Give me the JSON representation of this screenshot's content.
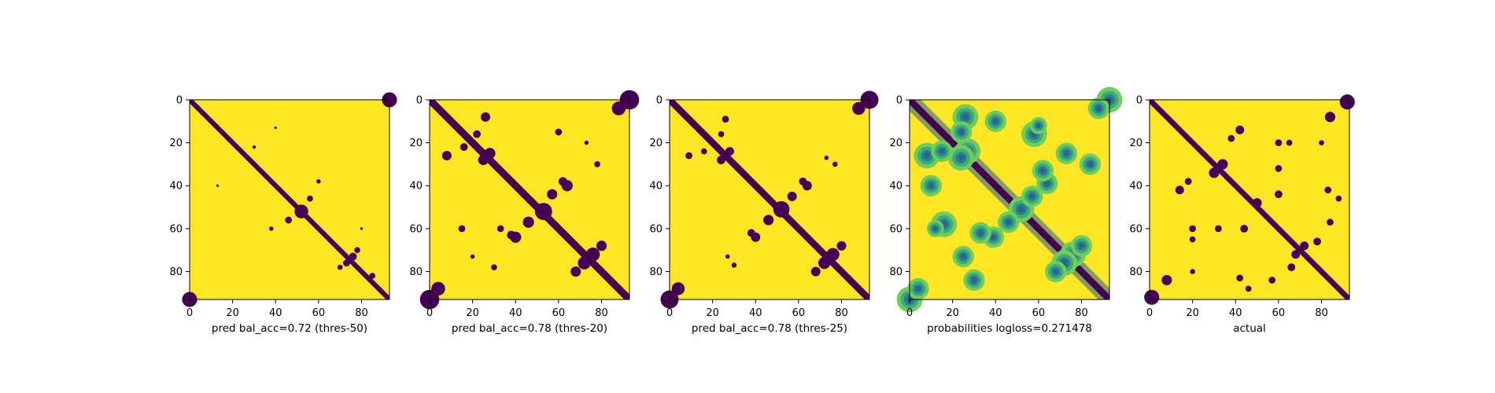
{
  "chart_data": [
    {
      "type": "heatmap",
      "title": "",
      "xlabel": "pred bal_acc=0.72 (thres-50)",
      "ylabel": "",
      "size": 93,
      "x_ticks": [
        0,
        20,
        40,
        60,
        80
      ],
      "y_ticks": [
        0,
        20,
        40,
        60,
        80
      ],
      "xlim": [
        0,
        93
      ],
      "ylim": [
        0,
        93
      ],
      "grid": false,
      "colors": [
        "#440154",
        "#fde725"
      ],
      "diagonal_band_halfwidth": 1.6,
      "spots": [
        {
          "x": 93,
          "y": 0,
          "r": 3.5
        },
        {
          "x": 0,
          "y": 93,
          "r": 3.5
        },
        {
          "x": 52,
          "y": 52,
          "r": 3.2
        },
        {
          "x": 46,
          "y": 56,
          "r": 1.6
        },
        {
          "x": 56,
          "y": 46,
          "r": 1.4
        },
        {
          "x": 60,
          "y": 38,
          "r": 1.0
        },
        {
          "x": 38,
          "y": 60,
          "r": 1.0
        },
        {
          "x": 76,
          "y": 73,
          "r": 1.8
        },
        {
          "x": 73,
          "y": 76,
          "r": 1.6
        },
        {
          "x": 78,
          "y": 70,
          "r": 1.4
        },
        {
          "x": 70,
          "y": 78,
          "r": 1.2
        },
        {
          "x": 85,
          "y": 82,
          "r": 1.4
        },
        {
          "x": 30,
          "y": 22,
          "r": 0.8
        },
        {
          "x": 80,
          "y": 60,
          "r": 0.6
        },
        {
          "x": 40,
          "y": 13,
          "r": 0.6
        },
        {
          "x": 13,
          "y": 40,
          "r": 0.6
        }
      ]
    },
    {
      "type": "heatmap",
      "title": "",
      "xlabel": "pred bal_acc=0.78 (thres-20)",
      "ylabel": "",
      "size": 93,
      "x_ticks": [
        0,
        20,
        40,
        60,
        80
      ],
      "y_ticks": [
        0,
        20,
        40,
        60,
        80
      ],
      "xlim": [
        0,
        93
      ],
      "ylim": [
        0,
        93
      ],
      "grid": false,
      "colors": [
        "#440154",
        "#fde725"
      ],
      "diagonal_band_halfwidth": 2.4,
      "spots": [
        {
          "x": 93,
          "y": 0,
          "r": 4.5
        },
        {
          "x": 0,
          "y": 93,
          "r": 4.5
        },
        {
          "x": 53,
          "y": 52,
          "r": 4.0
        },
        {
          "x": 46,
          "y": 57,
          "r": 2.6
        },
        {
          "x": 57,
          "y": 44,
          "r": 2.4
        },
        {
          "x": 62,
          "y": 38,
          "r": 2.0
        },
        {
          "x": 38,
          "y": 63,
          "r": 2.0
        },
        {
          "x": 28,
          "y": 25,
          "r": 2.6
        },
        {
          "x": 25,
          "y": 28,
          "r": 2.4
        },
        {
          "x": 26,
          "y": 8,
          "r": 2.2
        },
        {
          "x": 8,
          "y": 26,
          "r": 2.2
        },
        {
          "x": 16,
          "y": 22,
          "r": 1.8
        },
        {
          "x": 22,
          "y": 16,
          "r": 1.8
        },
        {
          "x": 64,
          "y": 40,
          "r": 2.6
        },
        {
          "x": 40,
          "y": 64,
          "r": 2.6
        },
        {
          "x": 76,
          "y": 72,
          "r": 3.2
        },
        {
          "x": 72,
          "y": 76,
          "r": 3.0
        },
        {
          "x": 80,
          "y": 68,
          "r": 2.4
        },
        {
          "x": 68,
          "y": 80,
          "r": 2.4
        },
        {
          "x": 60,
          "y": 15,
          "r": 1.6
        },
        {
          "x": 15,
          "y": 60,
          "r": 1.6
        },
        {
          "x": 73,
          "y": 20,
          "r": 1.0
        },
        {
          "x": 20,
          "y": 73,
          "r": 1.0
        },
        {
          "x": 4,
          "y": 88,
          "r": 3.2
        },
        {
          "x": 88,
          "y": 4,
          "r": 3.2
        },
        {
          "x": 30,
          "y": 78,
          "r": 1.4
        },
        {
          "x": 78,
          "y": 30,
          "r": 1.4
        },
        {
          "x": 33,
          "y": 60,
          "r": 1.6
        }
      ]
    },
    {
      "type": "heatmap",
      "title": "",
      "xlabel": "pred bal_acc=0.78 (thres-25)",
      "ylabel": "",
      "size": 93,
      "x_ticks": [
        0,
        20,
        40,
        60,
        80
      ],
      "y_ticks": [
        0,
        20,
        40,
        60,
        80
      ],
      "xlim": [
        0,
        93
      ],
      "ylim": [
        0,
        93
      ],
      "grid": false,
      "colors": [
        "#440154",
        "#fde725"
      ],
      "diagonal_band_halfwidth": 2.2,
      "spots": [
        {
          "x": 93,
          "y": 0,
          "r": 4.2
        },
        {
          "x": 0,
          "y": 93,
          "r": 4.2
        },
        {
          "x": 52,
          "y": 51,
          "r": 3.8
        },
        {
          "x": 46,
          "y": 56,
          "r": 2.4
        },
        {
          "x": 57,
          "y": 45,
          "r": 2.2
        },
        {
          "x": 62,
          "y": 38,
          "r": 1.8
        },
        {
          "x": 38,
          "y": 62,
          "r": 1.8
        },
        {
          "x": 28,
          "y": 24,
          "r": 2.0
        },
        {
          "x": 24,
          "y": 28,
          "r": 2.0
        },
        {
          "x": 26,
          "y": 9,
          "r": 1.6
        },
        {
          "x": 9,
          "y": 26,
          "r": 1.6
        },
        {
          "x": 16,
          "y": 24,
          "r": 1.4
        },
        {
          "x": 24,
          "y": 16,
          "r": 1.4
        },
        {
          "x": 64,
          "y": 40,
          "r": 2.2
        },
        {
          "x": 40,
          "y": 64,
          "r": 2.2
        },
        {
          "x": 76,
          "y": 72,
          "r": 3.0
        },
        {
          "x": 72,
          "y": 76,
          "r": 2.8
        },
        {
          "x": 80,
          "y": 68,
          "r": 2.2
        },
        {
          "x": 68,
          "y": 80,
          "r": 2.2
        },
        {
          "x": 73,
          "y": 27,
          "r": 1.0
        },
        {
          "x": 27,
          "y": 73,
          "r": 1.0
        },
        {
          "x": 4,
          "y": 88,
          "r": 3.0
        },
        {
          "x": 88,
          "y": 4,
          "r": 3.0
        },
        {
          "x": 30,
          "y": 77,
          "r": 1.2
        },
        {
          "x": 77,
          "y": 30,
          "r": 1.2
        }
      ]
    },
    {
      "type": "heatmap",
      "title": "",
      "xlabel": "probabilities logloss=0.271478",
      "ylabel": "",
      "size": 93,
      "x_ticks": [
        0,
        20,
        40,
        60,
        80
      ],
      "y_ticks": [
        0,
        20,
        40,
        60,
        80
      ],
      "xlim": [
        0,
        93
      ],
      "ylim": [
        0,
        93
      ],
      "grid": false,
      "colors": [
        "#440154",
        "#3b528b",
        "#21918c",
        "#5ec962",
        "#fde725"
      ],
      "continuous": true,
      "diagonal_band_halfwidth": 2.2,
      "spots": [
        {
          "x": 93,
          "y": 0,
          "r": 6.0
        },
        {
          "x": 0,
          "y": 93,
          "r": 6.0
        },
        {
          "x": 52,
          "y": 51,
          "r": 6.0
        },
        {
          "x": 46,
          "y": 57,
          "r": 5.0
        },
        {
          "x": 57,
          "y": 45,
          "r": 5.0
        },
        {
          "x": 64,
          "y": 39,
          "r": 5.0
        },
        {
          "x": 39,
          "y": 64,
          "r": 5.0
        },
        {
          "x": 27,
          "y": 24,
          "r": 6.0
        },
        {
          "x": 24,
          "y": 27,
          "r": 6.0
        },
        {
          "x": 26,
          "y": 8,
          "r": 6.0
        },
        {
          "x": 8,
          "y": 26,
          "r": 6.0
        },
        {
          "x": 15,
          "y": 24,
          "r": 5.0
        },
        {
          "x": 24,
          "y": 15,
          "r": 5.0
        },
        {
          "x": 76,
          "y": 72,
          "r": 6.0
        },
        {
          "x": 72,
          "y": 76,
          "r": 6.0
        },
        {
          "x": 80,
          "y": 68,
          "r": 5.0
        },
        {
          "x": 68,
          "y": 80,
          "r": 5.0
        },
        {
          "x": 58,
          "y": 16,
          "r": 6.0
        },
        {
          "x": 16,
          "y": 58,
          "r": 6.0
        },
        {
          "x": 73,
          "y": 25,
          "r": 5.0
        },
        {
          "x": 25,
          "y": 73,
          "r": 5.0
        },
        {
          "x": 4,
          "y": 88,
          "r": 5.0
        },
        {
          "x": 88,
          "y": 4,
          "r": 5.0
        },
        {
          "x": 33,
          "y": 62,
          "r": 5.0
        },
        {
          "x": 62,
          "y": 33,
          "r": 5.0
        },
        {
          "x": 40,
          "y": 10,
          "r": 5.0
        },
        {
          "x": 10,
          "y": 40,
          "r": 5.0
        },
        {
          "x": 84,
          "y": 30,
          "r": 5.0
        },
        {
          "x": 30,
          "y": 84,
          "r": 5.0
        },
        {
          "x": 12,
          "y": 60,
          "r": 4.0
        },
        {
          "x": 60,
          "y": 12,
          "r": 4.0
        }
      ]
    },
    {
      "type": "heatmap",
      "title": "",
      "xlabel": "actual",
      "ylabel": "",
      "size": 93,
      "x_ticks": [
        0,
        20,
        40,
        60,
        80
      ],
      "y_ticks": [
        0,
        20,
        40,
        60,
        80
      ],
      "xlim": [
        0,
        93
      ],
      "ylim": [
        0,
        93
      ],
      "grid": false,
      "colors": [
        "#440154",
        "#fde725"
      ],
      "diagonal_band_halfwidth": 1.8,
      "spots": [
        {
          "x": 92,
          "y": 1,
          "r": 3.5
        },
        {
          "x": 1,
          "y": 92,
          "r": 3.5
        },
        {
          "x": 50,
          "y": 48,
          "r": 2.2
        },
        {
          "x": 34,
          "y": 30,
          "r": 2.4
        },
        {
          "x": 30,
          "y": 34,
          "r": 2.4
        },
        {
          "x": 42,
          "y": 14,
          "r": 2.0
        },
        {
          "x": 14,
          "y": 42,
          "r": 2.0
        },
        {
          "x": 18,
          "y": 38,
          "r": 1.6
        },
        {
          "x": 38,
          "y": 18,
          "r": 1.6
        },
        {
          "x": 44,
          "y": 60,
          "r": 1.8
        },
        {
          "x": 60,
          "y": 44,
          "r": 1.8
        },
        {
          "x": 60,
          "y": 32,
          "r": 1.6
        },
        {
          "x": 32,
          "y": 60,
          "r": 1.6
        },
        {
          "x": 72,
          "y": 68,
          "r": 2.0
        },
        {
          "x": 68,
          "y": 72,
          "r": 2.0
        },
        {
          "x": 78,
          "y": 66,
          "r": 1.8
        },
        {
          "x": 66,
          "y": 78,
          "r": 1.8
        },
        {
          "x": 20,
          "y": 60,
          "r": 1.6
        },
        {
          "x": 60,
          "y": 20,
          "r": 1.6
        },
        {
          "x": 42,
          "y": 83,
          "r": 1.6
        },
        {
          "x": 83,
          "y": 42,
          "r": 1.6
        },
        {
          "x": 8,
          "y": 84,
          "r": 2.4
        },
        {
          "x": 84,
          "y": 8,
          "r": 2.4
        },
        {
          "x": 57,
          "y": 84,
          "r": 1.6
        },
        {
          "x": 84,
          "y": 57,
          "r": 1.6
        },
        {
          "x": 88,
          "y": 46,
          "r": 1.4
        },
        {
          "x": 46,
          "y": 88,
          "r": 1.4
        },
        {
          "x": 65,
          "y": 20,
          "r": 1.4
        },
        {
          "x": 20,
          "y": 65,
          "r": 1.4
        },
        {
          "x": 80,
          "y": 20,
          "r": 1.2
        },
        {
          "x": 20,
          "y": 80,
          "r": 1.2
        }
      ]
    }
  ]
}
